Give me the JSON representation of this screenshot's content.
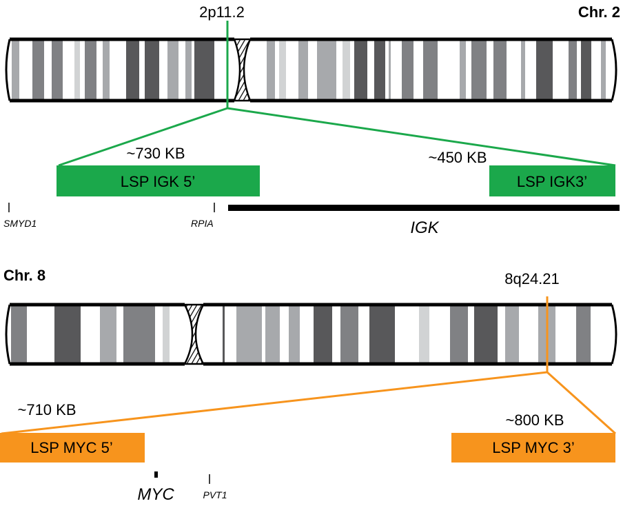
{
  "colors": {
    "igk_probe": "#1ba84b",
    "myc_probe": "#f7941d",
    "band_dark": "#58585a",
    "band_mid": "#808184",
    "band_light": "#a7a9ac",
    "band_pale": "#d1d3d4"
  },
  "chr2": {
    "title": "Chr. 2",
    "locus": "2p11.2",
    "probe_5": {
      "label": "LSP IGK 5’",
      "size": "~730 KB"
    },
    "probe_3": {
      "label": "LSP IGK3’",
      "size": "~450 KB"
    },
    "genes": {
      "smyd1": "SMYD1",
      "rpia": "RPIA",
      "igk": "IGK"
    }
  },
  "chr8": {
    "title": "Chr. 8",
    "locus": "8q24.21",
    "probe_5": {
      "label": "LSP MYC 5’",
      "size": "~710 KB"
    },
    "probe_3": {
      "label": "LSP MYC 3’",
      "size": "~800 KB"
    },
    "genes": {
      "myc": "MYC",
      "pvt1": "PVT1"
    }
  }
}
